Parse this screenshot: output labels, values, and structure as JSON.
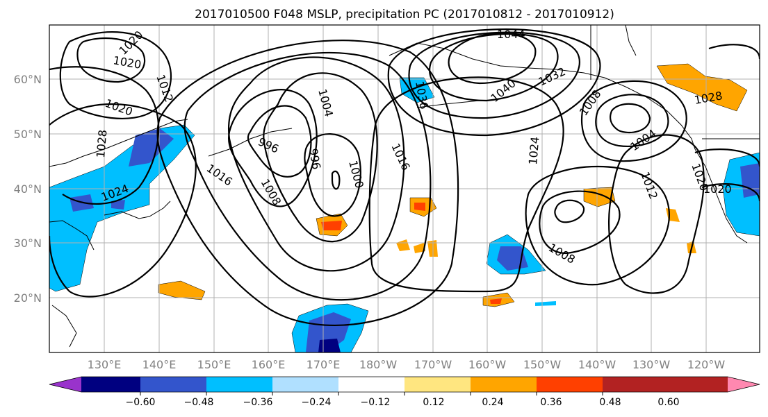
{
  "title": "2017010500 F048 MSLP, precipitation PC (2017010812 - 2017010912)",
  "lat_labels": [
    "60°N",
    "50°N",
    "40°N",
    "30°N",
    "20°N"
  ],
  "lon_labels": [
    "130°E",
    "140°E",
    "150°E",
    "160°E",
    "170°E",
    "180°W",
    "170°W",
    "160°W",
    "150°W",
    "140°W",
    "130°W",
    "120°W"
  ],
  "colorbar": {
    "ticks": [
      "−0.60",
      "−0.48",
      "−0.36",
      "−0.24",
      "−0.12",
      "0.12",
      "0.24",
      "0.36",
      "0.48",
      "0.60"
    ],
    "colors": [
      "#9933cc",
      "#000080",
      "#3355cc",
      "#00bfff",
      "#b0e0ff",
      "#ffffff",
      "#ffe680",
      "#ffa500",
      "#ff4000",
      "#b22222",
      "#ff88b0"
    ]
  },
  "isobar_labels": [
    "1020",
    "1020",
    "1012",
    "1020",
    "1028",
    "1024",
    "1016",
    "1008",
    "996",
    "996",
    "1004",
    "1000",
    "1016",
    "1036",
    "1044",
    "1040",
    "1032",
    "1024",
    "1008",
    "1004",
    "1012",
    "1008",
    "1028",
    "1020",
    "1020"
  ]
}
